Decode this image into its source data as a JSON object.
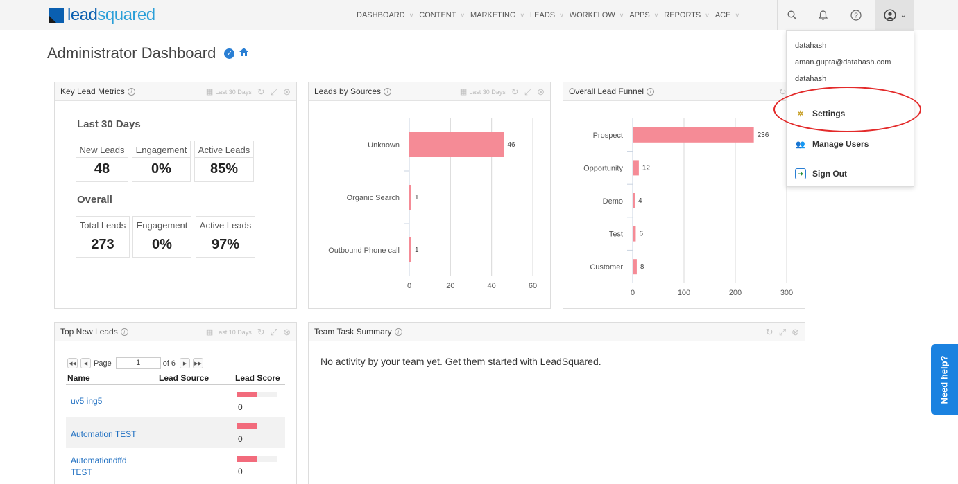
{
  "brand": {
    "part1": "lead",
    "part2": "squared"
  },
  "nav": [
    {
      "label": "DASHBOARD"
    },
    {
      "label": "CONTENT"
    },
    {
      "label": "MARKETING"
    },
    {
      "label": "LEADS"
    },
    {
      "label": "WORKFLOW"
    },
    {
      "label": "APPS"
    },
    {
      "label": "REPORTS"
    },
    {
      "label": "ACE"
    }
  ],
  "page": {
    "title": "Administrator Dashboard"
  },
  "user_menu": {
    "name": "datahash",
    "email": "aman.gupta@datahash.com",
    "org": "datahash",
    "items": [
      {
        "label": "Settings"
      },
      {
        "label": "Manage Users"
      },
      {
        "label": "Sign Out"
      }
    ]
  },
  "widgets": {
    "key_metrics": {
      "title": "Key Lead Metrics",
      "range": "Last 30 Days",
      "section1": "Last 30 Days",
      "section2": "Overall",
      "recent": [
        {
          "label": "New Leads",
          "value": "48"
        },
        {
          "label": "Engagement",
          "value": "0%"
        },
        {
          "label": "Active Leads",
          "value": "85%"
        }
      ],
      "overall": [
        {
          "label": "Total Leads",
          "value": "273"
        },
        {
          "label": "Engagement",
          "value": "0%"
        },
        {
          "label": "Active Leads",
          "value": "97%"
        }
      ]
    },
    "sources": {
      "title": "Leads by Sources",
      "range": "Last 30 Days"
    },
    "funnel": {
      "title": "Overall Lead Funnel"
    },
    "top_leads": {
      "title": "Top New Leads",
      "range": "Last 10 Days",
      "pager": {
        "label": "Page",
        "current": "1",
        "of": "of 6"
      },
      "columns": [
        "Name",
        "Lead Source",
        "Lead Score"
      ],
      "rows": [
        {
          "name": "uv5 ing5",
          "source": "",
          "score": "0",
          "bar_fraction": 0.5
        },
        {
          "name": "Automation TEST",
          "source": "",
          "score": "0",
          "bar_fraction": 0.5
        },
        {
          "name": "Automationdffd TEST",
          "source": "",
          "score": "0",
          "bar_fraction": 0.5
        }
      ]
    },
    "team_tasks": {
      "title": "Team Task Summary",
      "message": "No activity by your team yet. Get them started with LeadSquared."
    }
  },
  "help": {
    "label": "Need help?"
  },
  "colors": {
    "bar": "#f58b96",
    "accent": "#1b82e0",
    "highlight": "#e32a2a"
  },
  "chart_data": [
    {
      "type": "bar",
      "orientation": "horizontal",
      "categories": [
        "Unknown",
        "Organic Search",
        "Outbound Phone call"
      ],
      "values": [
        46,
        1,
        1
      ],
      "xlim": [
        0,
        60
      ],
      "ticks": [
        0,
        20,
        40,
        60
      ]
    },
    {
      "type": "bar",
      "orientation": "horizontal",
      "categories": [
        "Prospect",
        "Opportunity",
        "Demo",
        "Test",
        "Customer"
      ],
      "values": [
        236,
        12,
        4,
        6,
        8
      ],
      "xlim": [
        0,
        300
      ],
      "ticks": [
        0,
        100,
        200,
        300
      ]
    }
  ]
}
